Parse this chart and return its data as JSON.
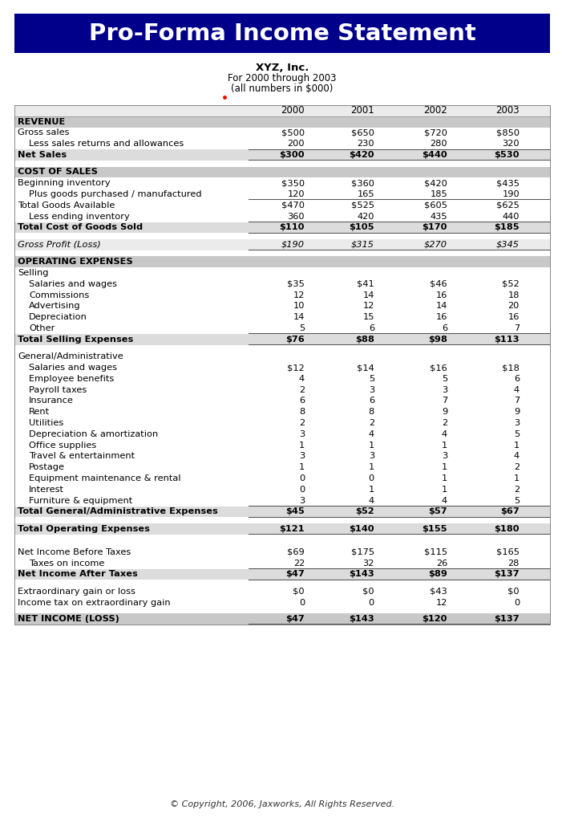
{
  "title": "Pro-Forma Income Statement",
  "subtitle1": "XYZ, Inc.",
  "subtitle2": "For 2000 through 2003",
  "subtitle3": "(all numbers in $000)",
  "copyright": "© Copyright, 2006, Jaxworks, All Rights Reserved.",
  "header_bg": "#00008B",
  "header_text_color": "#FFFFFF",
  "section_bg": "#C8C8C8",
  "total_bg": "#D8D8D8",
  "white_bg": "#FFFFFF",
  "years": [
    "2000",
    "2001",
    "2002",
    "2003"
  ],
  "rows": [
    {
      "label": "REVENUE",
      "vals": [
        "",
        "",
        "",
        ""
      ],
      "style": "section_header",
      "underline": false,
      "top_line": false
    },
    {
      "label": "Gross sales",
      "vals": [
        "$500",
        "$650",
        "$720",
        "$850"
      ],
      "style": "normal",
      "underline": false,
      "top_line": false
    },
    {
      "label": "   Less sales returns and allowances",
      "vals": [
        "200",
        "230",
        "280",
        "320"
      ],
      "style": "normal",
      "underline": true,
      "top_line": false
    },
    {
      "label": "Net Sales",
      "vals": [
        "$300",
        "$420",
        "$440",
        "$530"
      ],
      "style": "bold_total",
      "underline": true,
      "top_line": false
    },
    {
      "label": "",
      "vals": [
        "",
        "",
        "",
        ""
      ],
      "style": "spacer",
      "underline": false,
      "top_line": false
    },
    {
      "label": "COST OF SALES",
      "vals": [
        "",
        "",
        "",
        ""
      ],
      "style": "section_header",
      "underline": false,
      "top_line": false
    },
    {
      "label": "Beginning inventory",
      "vals": [
        "$350",
        "$360",
        "$420",
        "$435"
      ],
      "style": "normal",
      "underline": false,
      "top_line": false
    },
    {
      "label": "   Plus goods purchased / manufactured",
      "vals": [
        "120",
        "165",
        "185",
        "190"
      ],
      "style": "normal",
      "underline": true,
      "top_line": false
    },
    {
      "label": "Total Goods Available",
      "vals": [
        "$470",
        "$525",
        "$605",
        "$625"
      ],
      "style": "normal",
      "underline": false,
      "top_line": false
    },
    {
      "label": "   Less ending inventory",
      "vals": [
        "360",
        "420",
        "435",
        "440"
      ],
      "style": "normal",
      "underline": true,
      "top_line": false
    },
    {
      "label": "Total Cost of Goods Sold",
      "vals": [
        "$110",
        "$105",
        "$170",
        "$185"
      ],
      "style": "bold_total",
      "underline": true,
      "top_line": false
    },
    {
      "label": "",
      "vals": [
        "",
        "",
        "",
        ""
      ],
      "style": "spacer",
      "underline": false,
      "top_line": false
    },
    {
      "label": "Gross Profit (Loss)",
      "vals": [
        "$190",
        "$315",
        "$270",
        "$345"
      ],
      "style": "gross_profit",
      "underline": true,
      "top_line": false
    },
    {
      "label": "",
      "vals": [
        "",
        "",
        "",
        ""
      ],
      "style": "spacer",
      "underline": false,
      "top_line": false
    },
    {
      "label": "OPERATING EXPENSES",
      "vals": [
        "",
        "",
        "",
        ""
      ],
      "style": "section_header",
      "underline": false,
      "top_line": false
    },
    {
      "label": "Selling",
      "vals": [
        "",
        "",
        "",
        ""
      ],
      "style": "normal",
      "underline": false,
      "top_line": false
    },
    {
      "label": "   Salaries and wages",
      "vals": [
        "$35",
        "$41",
        "$46",
        "$52"
      ],
      "style": "normal",
      "underline": false,
      "top_line": false
    },
    {
      "label": "   Commissions",
      "vals": [
        "12",
        "14",
        "16",
        "18"
      ],
      "style": "normal",
      "underline": false,
      "top_line": false
    },
    {
      "label": "   Advertising",
      "vals": [
        "10",
        "12",
        "14",
        "20"
      ],
      "style": "normal",
      "underline": false,
      "top_line": false
    },
    {
      "label": "   Depreciation",
      "vals": [
        "14",
        "15",
        "16",
        "16"
      ],
      "style": "normal",
      "underline": false,
      "top_line": false
    },
    {
      "label": "   Other",
      "vals": [
        "5",
        "6",
        "6",
        "7"
      ],
      "style": "normal",
      "underline": true,
      "top_line": false
    },
    {
      "label": "Total Selling Expenses",
      "vals": [
        "$76",
        "$88",
        "$98",
        "$113"
      ],
      "style": "bold_total",
      "underline": true,
      "top_line": false
    },
    {
      "label": "",
      "vals": [
        "",
        "",
        "",
        ""
      ],
      "style": "spacer",
      "underline": false,
      "top_line": false
    },
    {
      "label": "General/Administrative",
      "vals": [
        "",
        "",
        "",
        ""
      ],
      "style": "normal",
      "underline": false,
      "top_line": false
    },
    {
      "label": "   Salaries and wages",
      "vals": [
        "$12",
        "$14",
        "$16",
        "$18"
      ],
      "style": "normal",
      "underline": false,
      "top_line": false
    },
    {
      "label": "   Employee benefits",
      "vals": [
        "4",
        "5",
        "5",
        "6"
      ],
      "style": "normal",
      "underline": false,
      "top_line": false
    },
    {
      "label": "   Payroll taxes",
      "vals": [
        "2",
        "3",
        "3",
        "4"
      ],
      "style": "normal",
      "underline": false,
      "top_line": false
    },
    {
      "label": "   Insurance",
      "vals": [
        "6",
        "6",
        "7",
        "7"
      ],
      "style": "normal",
      "underline": false,
      "top_line": false
    },
    {
      "label": "   Rent",
      "vals": [
        "8",
        "8",
        "9",
        "9"
      ],
      "style": "normal",
      "underline": false,
      "top_line": false
    },
    {
      "label": "   Utilities",
      "vals": [
        "2",
        "2",
        "2",
        "3"
      ],
      "style": "normal",
      "underline": false,
      "top_line": false
    },
    {
      "label": "   Depreciation & amortization",
      "vals": [
        "3",
        "4",
        "4",
        "5"
      ],
      "style": "normal",
      "underline": false,
      "top_line": false
    },
    {
      "label": "   Office supplies",
      "vals": [
        "1",
        "1",
        "1",
        "1"
      ],
      "style": "normal",
      "underline": false,
      "top_line": false
    },
    {
      "label": "   Travel & entertainment",
      "vals": [
        "3",
        "3",
        "3",
        "4"
      ],
      "style": "normal",
      "underline": false,
      "top_line": false
    },
    {
      "label": "   Postage",
      "vals": [
        "1",
        "1",
        "1",
        "2"
      ],
      "style": "normal",
      "underline": false,
      "top_line": false
    },
    {
      "label": "   Equipment maintenance & rental",
      "vals": [
        "0",
        "0",
        "1",
        "1"
      ],
      "style": "normal",
      "underline": false,
      "top_line": false
    },
    {
      "label": "   Interest",
      "vals": [
        "0",
        "1",
        "1",
        "2"
      ],
      "style": "normal",
      "underline": false,
      "top_line": false
    },
    {
      "label": "   Furniture & equipment",
      "vals": [
        "3",
        "4",
        "4",
        "5"
      ],
      "style": "normal",
      "underline": true,
      "top_line": false
    },
    {
      "label": "Total General/Administrative Expenses",
      "vals": [
        "$45",
        "$52",
        "$57",
        "$67"
      ],
      "style": "bold_total",
      "underline": true,
      "top_line": false
    },
    {
      "label": "",
      "vals": [
        "",
        "",
        "",
        ""
      ],
      "style": "spacer",
      "underline": false,
      "top_line": false
    },
    {
      "label": "Total Operating Expenses",
      "vals": [
        "$121",
        "$140",
        "$155",
        "$180"
      ],
      "style": "bold_total",
      "underline": true,
      "top_line": false
    },
    {
      "label": "",
      "vals": [
        "",
        "",
        "",
        ""
      ],
      "style": "spacer",
      "underline": false,
      "top_line": false
    },
    {
      "label": "",
      "vals": [
        "",
        "",
        "",
        ""
      ],
      "style": "spacer",
      "underline": false,
      "top_line": false
    },
    {
      "label": "Net Income Before Taxes",
      "vals": [
        "$69",
        "$175",
        "$115",
        "$165"
      ],
      "style": "normal",
      "underline": false,
      "top_line": false
    },
    {
      "label": "   Taxes on income",
      "vals": [
        "22",
        "32",
        "26",
        "28"
      ],
      "style": "normal",
      "underline": true,
      "top_line": false
    },
    {
      "label": "Net Income After Taxes",
      "vals": [
        "$47",
        "$143",
        "$89",
        "$137"
      ],
      "style": "bold_total",
      "underline": true,
      "top_line": false
    },
    {
      "label": "",
      "vals": [
        "",
        "",
        "",
        ""
      ],
      "style": "spacer",
      "underline": false,
      "top_line": false
    },
    {
      "label": "Extraordinary gain or loss",
      "vals": [
        "$0",
        "$0",
        "$43",
        "$0"
      ],
      "style": "normal",
      "underline": false,
      "top_line": false
    },
    {
      "label": "Income tax on extraordinary gain",
      "vals": [
        "0",
        "0",
        "12",
        "0"
      ],
      "style": "normal",
      "underline": false,
      "top_line": false
    },
    {
      "label": "",
      "vals": [
        "",
        "",
        "",
        ""
      ],
      "style": "spacer_small",
      "underline": false,
      "top_line": false
    },
    {
      "label": "NET INCOME (LOSS)",
      "vals": [
        "$47",
        "$143",
        "$120",
        "$137"
      ],
      "style": "net_income",
      "underline": true,
      "top_line": false
    }
  ]
}
